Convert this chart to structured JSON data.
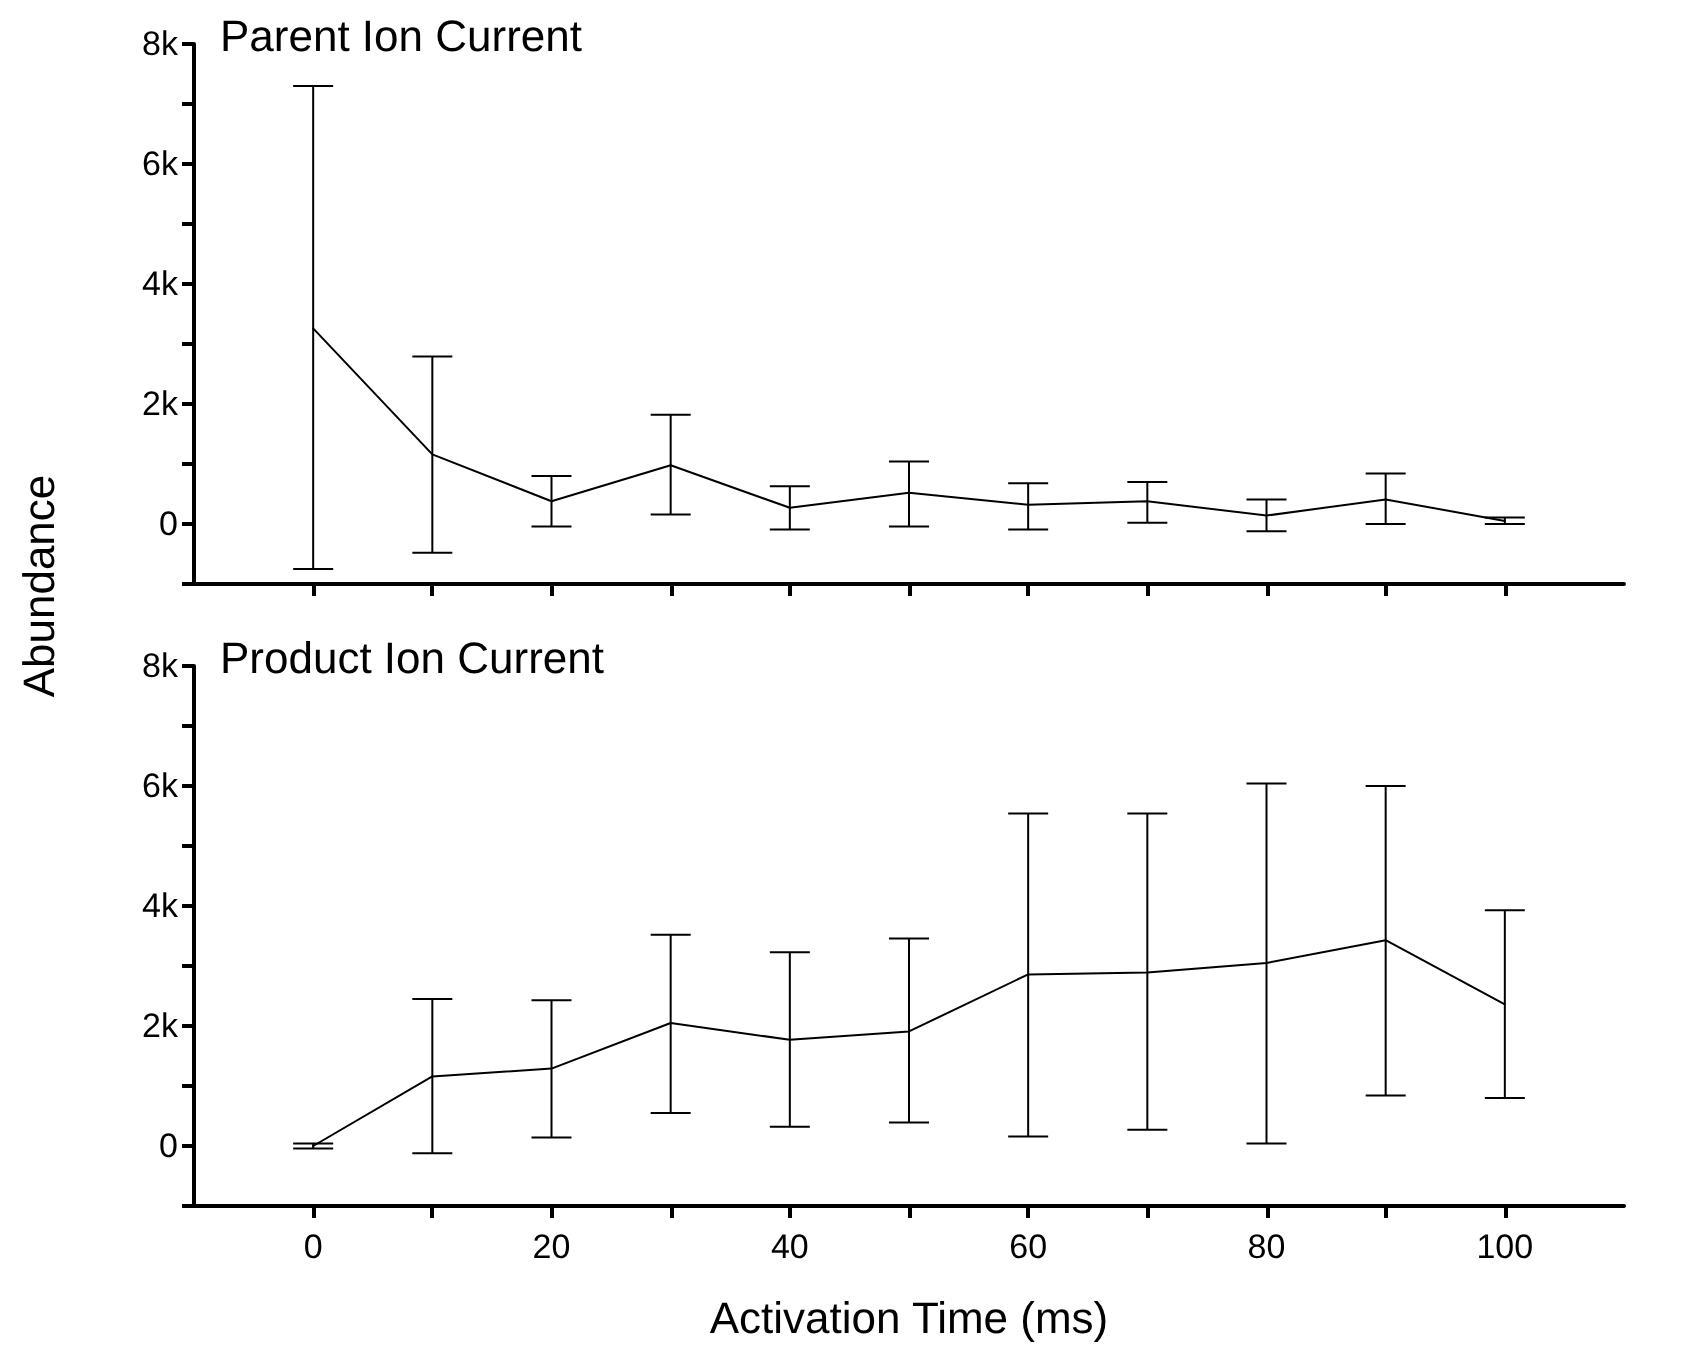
{
  "chart_data": [
    {
      "type": "line",
      "title": "Parent Ion Current",
      "ylabel": "Abundance",
      "x": [
        0,
        10,
        20,
        30,
        40,
        50,
        60,
        70,
        80,
        90,
        100
      ],
      "series": [
        {
          "color": "#000000",
          "values": [
            3260,
            1160,
            380,
            980,
            270,
            520,
            320,
            380,
            140,
            410,
            50
          ],
          "errors": [
            [
              -750,
              7300
            ],
            [
              -480,
              2790
            ],
            [
              -40,
              800
            ],
            [
              160,
              1820
            ],
            [
              -90,
              630
            ],
            [
              -40,
              1040
            ],
            [
              -90,
              680
            ],
            [
              20,
              700
            ],
            [
              -120,
              410
            ],
            [
              0,
              840
            ],
            [
              0,
              110
            ]
          ]
        }
      ],
      "xlim": [
        -10,
        110
      ],
      "xticks": [
        {
          "value": 0,
          "label": null
        },
        {
          "value": 10,
          "label": null
        },
        {
          "value": 20,
          "label": null
        },
        {
          "value": 30,
          "label": null
        },
        {
          "value": 40,
          "label": null
        },
        {
          "value": 50,
          "label": null
        },
        {
          "value": 60,
          "label": null
        },
        {
          "value": 70,
          "label": null
        },
        {
          "value": 80,
          "label": null
        },
        {
          "value": 90,
          "label": null
        },
        {
          "value": 100,
          "label": null
        }
      ],
      "ylim": [
        -1000,
        8000
      ],
      "yticks": [
        {
          "value": -1000,
          "label": null
        },
        {
          "value": 0,
          "label": "0"
        },
        {
          "value": 1000,
          "label": null
        },
        {
          "value": 2000,
          "label": "2k"
        },
        {
          "value": 3000,
          "label": null
        },
        {
          "value": 4000,
          "label": "4k"
        },
        {
          "value": 5000,
          "label": null
        },
        {
          "value": 6000,
          "label": "6k"
        },
        {
          "value": 7000,
          "label": null
        },
        {
          "value": 8000,
          "label": "8k"
        }
      ],
      "tick_labels": "y",
      "line_style": "solid"
    },
    {
      "type": "line",
      "title": "Product Ion Current",
      "xlabel": "Activation Time (ms)",
      "x": [
        0,
        10,
        20,
        30,
        40,
        50,
        60,
        70,
        80,
        90,
        100
      ],
      "series": [
        {
          "color": "#000000",
          "values": [
            0,
            1160,
            1290,
            2050,
            1770,
            1910,
            2860,
            2890,
            3050,
            3430,
            2360
          ],
          "errors": [
            [
              -40,
              40
            ],
            [
              -120,
              2450
            ],
            [
              140,
              2430
            ],
            [
              550,
              3520
            ],
            [
              320,
              3230
            ],
            [
              390,
              3460
            ],
            [
              160,
              5540
            ],
            [
              270,
              5540
            ],
            [
              40,
              6040
            ],
            [
              840,
              6000
            ],
            [
              800,
              3930
            ]
          ]
        }
      ],
      "xlim": [
        -10,
        110
      ],
      "xticks": [
        {
          "value": 0,
          "label": "0"
        },
        {
          "value": 10,
          "label": null
        },
        {
          "value": 20,
          "label": "20"
        },
        {
          "value": 30,
          "label": null
        },
        {
          "value": 40,
          "label": "40"
        },
        {
          "value": 50,
          "label": null
        },
        {
          "value": 60,
          "label": "60"
        },
        {
          "value": 70,
          "label": null
        },
        {
          "value": 80,
          "label": "80"
        },
        {
          "value": 90,
          "label": null
        },
        {
          "value": 100,
          "label": "100"
        }
      ],
      "ylim": [
        -1000,
        8000
      ],
      "yticks": [
        {
          "value": -1000,
          "label": null
        },
        {
          "value": 0,
          "label": "0"
        },
        {
          "value": 1000,
          "label": null
        },
        {
          "value": 2000,
          "label": "2k"
        },
        {
          "value": 3000,
          "label": null
        },
        {
          "value": 4000,
          "label": "4k"
        },
        {
          "value": 5000,
          "label": null
        },
        {
          "value": 6000,
          "label": "6k"
        },
        {
          "value": 7000,
          "label": null
        },
        {
          "value": 8000,
          "label": "8k"
        }
      ],
      "line_style": "solid"
    }
  ]
}
